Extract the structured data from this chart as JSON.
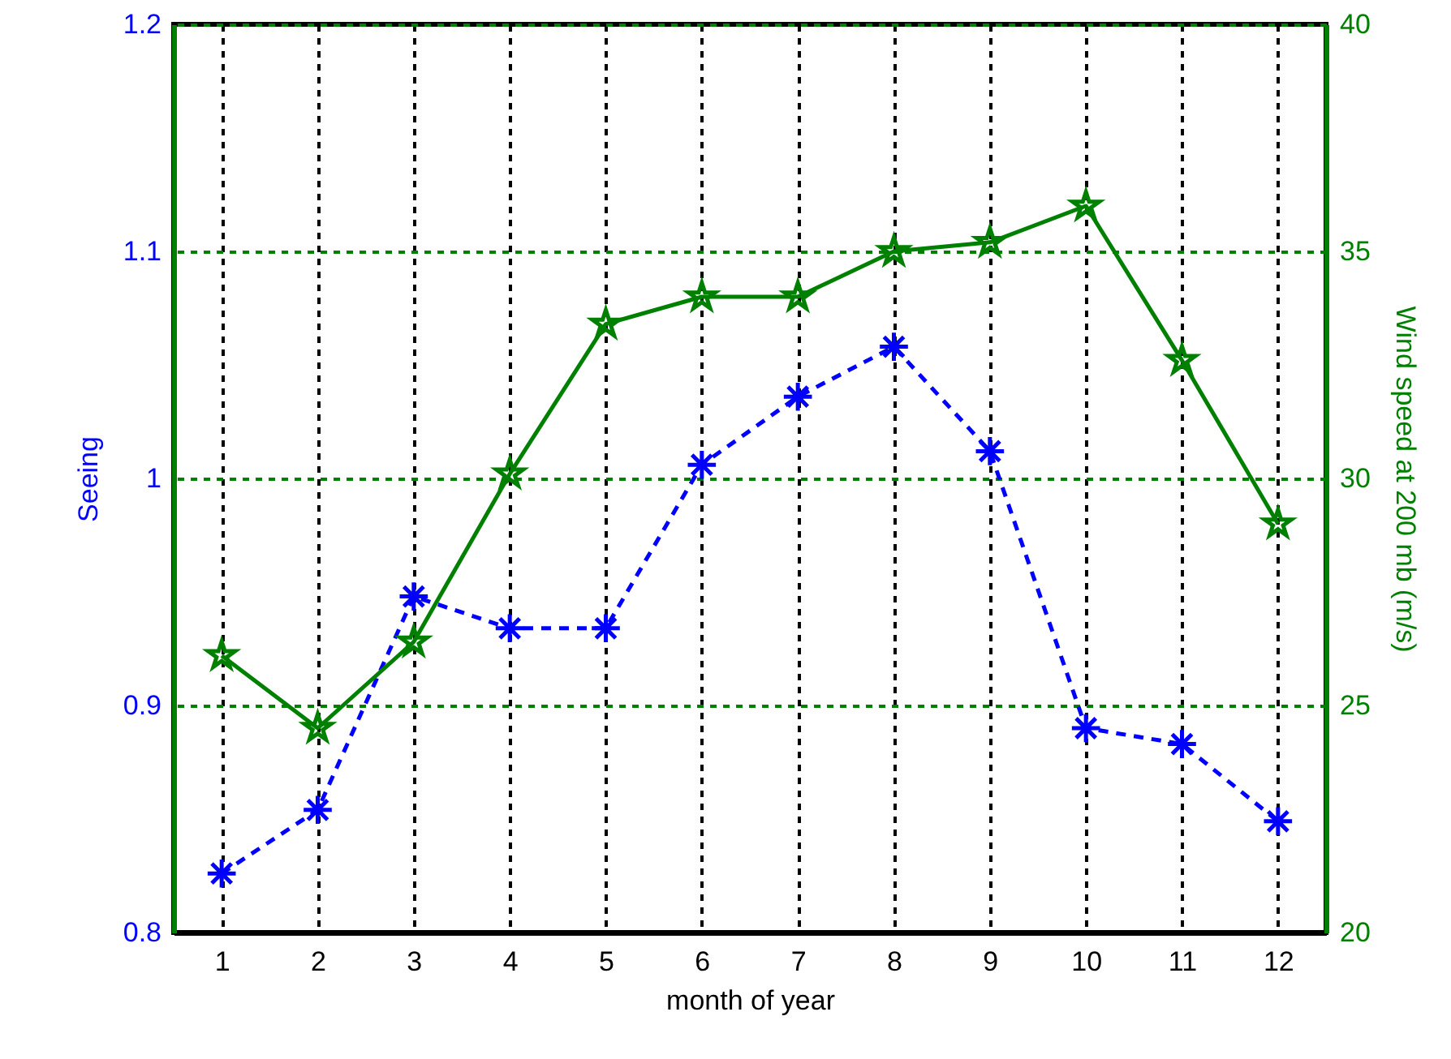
{
  "chart_data": {
    "type": "line",
    "xlabel": "month of year",
    "ylabel": "Seeing",
    "y2label": "Wind speed at 200 mb (m/s)",
    "x": [
      1,
      2,
      3,
      4,
      5,
      6,
      7,
      8,
      9,
      10,
      11,
      12
    ],
    "xlim": [
      0.5,
      12.5
    ],
    "xticks": [
      1,
      2,
      3,
      4,
      5,
      6,
      7,
      8,
      9,
      10,
      11,
      12
    ],
    "ylim": [
      0.8,
      1.2
    ],
    "yticks": [
      0.8,
      0.9,
      1,
      1.1,
      1.2
    ],
    "y2lim": [
      20,
      40
    ],
    "y2ticks": [
      20,
      25,
      30,
      35,
      40
    ],
    "grid": true,
    "series": [
      {
        "color": "#0000ff",
        "marker": "cross",
        "line_style": "dashed",
        "values": [
          0.826,
          0.854,
          0.948,
          0.934,
          0.934,
          1.006,
          1.036,
          1.058,
          1.012,
          0.89,
          0.883,
          0.849
        ]
      },
      {
        "color": "#008000",
        "marker": "star",
        "line_style": "solid",
        "axis": "y2",
        "values": [
          26.1,
          24.5,
          26.4,
          30.1,
          33.4,
          34.0,
          34.0,
          35.0,
          35.2,
          36.0,
          32.6,
          29.0
        ]
      }
    ]
  }
}
